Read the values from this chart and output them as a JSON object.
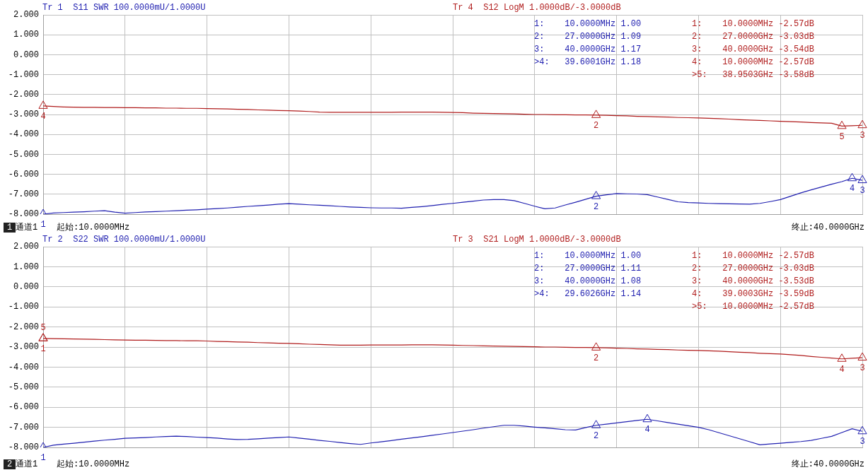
{
  "chart_data": [
    {
      "type": "line",
      "categories": [
        null,
        null,
        null,
        null,
        null,
        null,
        null,
        null,
        null,
        null,
        null,
        null,
        null,
        null,
        null,
        null,
        null,
        null,
        null,
        null,
        null,
        null,
        null,
        null,
        null,
        null,
        null,
        null,
        null,
        null,
        null,
        null,
        null,
        null,
        null,
        null,
        null,
        null,
        null,
        null,
        null,
        null,
        null,
        null,
        null,
        null,
        null,
        null,
        null,
        null,
        null,
        null,
        null,
        null,
        null,
        null,
        null,
        null,
        null,
        null,
        null,
        null,
        null,
        null,
        null,
        null,
        null,
        null,
        null,
        null,
        null,
        null,
        null,
        null,
        null,
        null,
        null,
        null,
        null,
        null,
        null
      ],
      "ylim": [
        -8,
        2
      ],
      "yticks": [
        {
          "value": 2,
          "label": "2.000"
        },
        {
          "value": 1,
          "label": "1.000"
        },
        {
          "value": 0,
          "label": "0.000"
        },
        {
          "value": -1,
          "label": "-1.000"
        },
        {
          "value": -2,
          "label": "-2.000"
        },
        {
          "value": -3,
          "label": "-3.000"
        },
        {
          "value": -4,
          "label": "-4.000"
        },
        {
          "value": -5,
          "label": "-5.000"
        },
        {
          "value": -6,
          "label": "-6.000"
        },
        {
          "value": -7,
          "label": "-7.000"
        },
        {
          "value": -8,
          "label": "-8.000"
        }
      ],
      "grid": true,
      "tick_labels": "y",
      "legend": false,
      "series": [
        {
          "name": "Tr 1  S11 SWR 100.0000mU/1.0000U",
          "color": "#2020b0",
          "values": [
            -8.0,
            -7.94,
            -7.92,
            -7.9,
            -7.88,
            -7.85,
            -7.83,
            -7.9,
            -7.95,
            -7.92,
            -7.89,
            -7.87,
            -7.85,
            -7.83,
            -7.8,
            -7.78,
            -7.75,
            -7.72,
            -7.69,
            -7.65,
            -7.61,
            -7.58,
            -7.54,
            -7.5,
            -7.47,
            -7.5,
            -7.53,
            -7.55,
            -7.58,
            -7.61,
            -7.64,
            -7.66,
            -7.68,
            -7.69,
            -7.69,
            -7.7,
            -7.66,
            -7.62,
            -7.57,
            -7.51,
            -7.46,
            -7.4,
            -7.35,
            -7.29,
            -7.27,
            -7.27,
            -7.32,
            -7.46,
            -7.6,
            -7.73,
            -7.69,
            -7.54,
            -7.4,
            -7.25,
            -7.1,
            -7.03,
            -6.97,
            -6.98,
            -6.99,
            -7.02,
            -7.14,
            -7.26,
            -7.38,
            -7.42,
            -7.44,
            -7.46,
            -7.47,
            -7.48,
            -7.49,
            -7.5,
            -7.46,
            -7.37,
            -7.27,
            -7.1,
            -6.93,
            -6.78,
            -6.64,
            -6.5,
            -6.37,
            -6.2,
            -6.3
          ]
        },
        {
          "name": "Tr 4  S12 LogM 1.0000dB/-3.0000dB",
          "color": "#b01c1c",
          "values": [
            -2.57,
            -2.6,
            -2.62,
            -2.63,
            -2.64,
            -2.64,
            -2.65,
            -2.65,
            -2.66,
            -2.66,
            -2.67,
            -2.67,
            -2.68,
            -2.68,
            -2.69,
            -2.69,
            -2.7,
            -2.71,
            -2.72,
            -2.74,
            -2.75,
            -2.77,
            -2.78,
            -2.8,
            -2.81,
            -2.83,
            -2.85,
            -2.88,
            -2.89,
            -2.89,
            -2.89,
            -2.89,
            -2.89,
            -2.89,
            -2.89,
            -2.88,
            -2.88,
            -2.88,
            -2.88,
            -2.89,
            -2.9,
            -2.91,
            -2.93,
            -2.94,
            -2.95,
            -2.96,
            -2.97,
            -2.99,
            -3.0,
            -3.0,
            -3.01,
            -3.01,
            -3.02,
            -3.02,
            -3.03,
            -3.04,
            -3.06,
            -3.07,
            -3.09,
            -3.1,
            -3.12,
            -3.13,
            -3.15,
            -3.16,
            -3.17,
            -3.19,
            -3.21,
            -3.23,
            -3.26,
            -3.28,
            -3.3,
            -3.32,
            -3.34,
            -3.36,
            -3.38,
            -3.4,
            -3.42,
            -3.44,
            -3.58,
            -3.56,
            -3.54
          ]
        },
        {
          "type": "scatter",
          "marker": "triangle",
          "color": "#2020b0",
          "values": [
            -8.0,
            null,
            null,
            null,
            null,
            null,
            null,
            null,
            null,
            null,
            null,
            null,
            null,
            null,
            null,
            null,
            null,
            null,
            null,
            null,
            null,
            null,
            null,
            null,
            null,
            null,
            null,
            null,
            null,
            null,
            null,
            null,
            null,
            null,
            null,
            null,
            null,
            null,
            null,
            null,
            null,
            null,
            null,
            null,
            null,
            null,
            null,
            null,
            null,
            null,
            null,
            null,
            null,
            null,
            -7.1,
            null,
            null,
            null,
            null,
            null,
            null,
            null,
            null,
            null,
            null,
            null,
            null,
            null,
            null,
            null,
            null,
            null,
            null,
            null,
            null,
            null,
            null,
            null,
            null,
            -6.2,
            -6.3
          ]
        },
        {
          "type": "scatter",
          "marker": "triangle",
          "color": "#b01c1c",
          "values": [
            -2.57,
            null,
            null,
            null,
            null,
            null,
            null,
            null,
            null,
            null,
            null,
            null,
            null,
            null,
            null,
            null,
            null,
            null,
            null,
            null,
            null,
            null,
            null,
            null,
            null,
            null,
            null,
            null,
            null,
            null,
            null,
            null,
            null,
            null,
            null,
            null,
            null,
            null,
            null,
            null,
            null,
            null,
            null,
            null,
            null,
            null,
            null,
            null,
            null,
            null,
            null,
            null,
            null,
            null,
            -3.03,
            null,
            null,
            null,
            null,
            null,
            null,
            null,
            null,
            null,
            null,
            null,
            null,
            null,
            null,
            null,
            null,
            null,
            null,
            null,
            null,
            null,
            null,
            null,
            -3.58,
            null,
            -3.54
          ]
        }
      ],
      "annotations": [
        "1:    10.0000MHz 1.00",
        "2:    27.0000GHz 1.09",
        "3:    40.0000GHz 1.17",
        ">4:   39.6001GHz 1.18",
        "1:    10.0000MHz -2.57dB",
        "2:    27.0000GHz -3.03dB",
        "3:    40.0000GHz -3.54dB",
        "4:    10.0000MHz -2.57dB",
        ">5:   38.9503GHz -3.58dB",
        "1",
        "通道1",
        "起始:10.0000MHz",
        "终止:40.0000GHz",
        "1",
        "2",
        "4",
        "3",
        "4",
        "2",
        "5",
        "3"
      ]
    },
    {
      "type": "line",
      "categories": [
        null,
        null,
        null,
        null,
        null,
        null,
        null,
        null,
        null,
        null,
        null,
        null,
        null,
        null,
        null,
        null,
        null,
        null,
        null,
        null,
        null,
        null,
        null,
        null,
        null,
        null,
        null,
        null,
        null,
        null,
        null,
        null,
        null,
        null,
        null,
        null,
        null,
        null,
        null,
        null,
        null,
        null,
        null,
        null,
        null,
        null,
        null,
        null,
        null,
        null,
        null,
        null,
        null,
        null,
        null,
        null,
        null,
        null,
        null,
        null,
        null,
        null,
        null,
        null,
        null,
        null,
        null,
        null,
        null,
        null,
        null,
        null,
        null,
        null,
        null,
        null,
        null,
        null,
        null,
        null,
        null
      ],
      "ylim": [
        -8,
        2
      ],
      "yticks": [
        {
          "value": 2,
          "label": "2.000"
        },
        {
          "value": 1,
          "label": "1.000"
        },
        {
          "value": 0,
          "label": "0.000"
        },
        {
          "value": -1,
          "label": "-1.000"
        },
        {
          "value": -2,
          "label": "-2.000"
        },
        {
          "value": -3,
          "label": "-3.000"
        },
        {
          "value": -4,
          "label": "-4.000"
        },
        {
          "value": -5,
          "label": "-5.000"
        },
        {
          "value": -6,
          "label": "-6.000"
        },
        {
          "value": -7,
          "label": "-7.000"
        },
        {
          "value": -8,
          "label": "-8.000"
        }
      ],
      "grid": true,
      "tick_labels": "y",
      "legend": false,
      "series": [
        {
          "name": "Tr 2  S22 SWR 100.0000mU/1.0000U",
          "color": "#2020b0",
          "values": [
            -8.0,
            -7.89,
            -7.84,
            -7.79,
            -7.74,
            -7.69,
            -7.64,
            -7.6,
            -7.55,
            -7.53,
            -7.51,
            -7.48,
            -7.46,
            -7.44,
            -7.46,
            -7.49,
            -7.51,
            -7.54,
            -7.58,
            -7.61,
            -7.6,
            -7.57,
            -7.54,
            -7.51,
            -7.48,
            -7.54,
            -7.59,
            -7.65,
            -7.7,
            -7.76,
            -7.81,
            -7.85,
            -7.78,
            -7.72,
            -7.66,
            -7.59,
            -7.53,
            -7.47,
            -7.4,
            -7.33,
            -7.26,
            -7.19,
            -7.12,
            -7.04,
            -6.97,
            -6.9,
            -6.9,
            -6.94,
            -6.99,
            -7.03,
            -7.07,
            -7.12,
            -7.13,
            -7.01,
            -6.9,
            -6.84,
            -6.78,
            -6.72,
            -6.66,
            -6.6,
            -6.68,
            -6.76,
            -6.84,
            -6.92,
            -7.0,
            -7.12,
            -7.27,
            -7.42,
            -7.57,
            -7.72,
            -7.87,
            -7.83,
            -7.79,
            -7.75,
            -7.71,
            -7.65,
            -7.55,
            -7.45,
            -7.26,
            -7.07,
            -7.2
          ]
        },
        {
          "name": "Tr 3  S21 LogM 1.0000dB/-3.0000dB",
          "color": "#b01c1c",
          "values": [
            -2.57,
            -2.58,
            -2.59,
            -2.6,
            -2.61,
            -2.62,
            -2.63,
            -2.64,
            -2.65,
            -2.66,
            -2.66,
            -2.67,
            -2.68,
            -2.68,
            -2.69,
            -2.69,
            -2.7,
            -2.72,
            -2.73,
            -2.75,
            -2.76,
            -2.78,
            -2.79,
            -2.81,
            -2.82,
            -2.84,
            -2.86,
            -2.87,
            -2.89,
            -2.91,
            -2.91,
            -2.91,
            -2.9,
            -2.9,
            -2.9,
            -2.9,
            -2.89,
            -2.89,
            -2.89,
            -2.9,
            -2.91,
            -2.92,
            -2.93,
            -2.94,
            -2.95,
            -2.96,
            -2.97,
            -2.98,
            -2.99,
            -3.0,
            -3.0,
            -3.01,
            -3.02,
            -3.02,
            -3.03,
            -3.04,
            -3.06,
            -3.07,
            -3.09,
            -3.1,
            -3.12,
            -3.13,
            -3.15,
            -3.16,
            -3.17,
            -3.19,
            -3.21,
            -3.23,
            -3.26,
            -3.28,
            -3.31,
            -3.33,
            -3.35,
            -3.38,
            -3.42,
            -3.47,
            -3.51,
            -3.55,
            -3.59,
            -3.56,
            -3.53
          ]
        },
        {
          "type": "scatter",
          "marker": "triangle",
          "color": "#2020b0",
          "values": [
            -8.0,
            null,
            null,
            null,
            null,
            null,
            null,
            null,
            null,
            null,
            null,
            null,
            null,
            null,
            null,
            null,
            null,
            null,
            null,
            null,
            null,
            null,
            null,
            null,
            null,
            null,
            null,
            null,
            null,
            null,
            null,
            null,
            null,
            null,
            null,
            null,
            null,
            null,
            null,
            null,
            null,
            null,
            null,
            null,
            null,
            null,
            null,
            null,
            null,
            null,
            null,
            null,
            null,
            null,
            -6.9,
            null,
            null,
            null,
            null,
            -6.6,
            null,
            null,
            null,
            null,
            null,
            null,
            null,
            null,
            null,
            null,
            null,
            null,
            null,
            null,
            null,
            null,
            null,
            null,
            null,
            null,
            -7.2
          ]
        },
        {
          "type": "scatter",
          "marker": "triangle",
          "color": "#b01c1c",
          "values": [
            -2.57,
            null,
            null,
            null,
            null,
            null,
            null,
            null,
            null,
            null,
            null,
            null,
            null,
            null,
            null,
            null,
            null,
            null,
            null,
            null,
            null,
            null,
            null,
            null,
            null,
            null,
            null,
            null,
            null,
            null,
            null,
            null,
            null,
            null,
            null,
            null,
            null,
            null,
            null,
            null,
            null,
            null,
            null,
            null,
            null,
            null,
            null,
            null,
            null,
            null,
            null,
            null,
            null,
            null,
            -3.03,
            null,
            null,
            null,
            null,
            null,
            null,
            null,
            null,
            null,
            null,
            null,
            null,
            null,
            null,
            null,
            null,
            null,
            null,
            null,
            null,
            null,
            null,
            null,
            -3.59,
            null,
            -3.53
          ]
        },
        {
          "type": "scatter",
          "marker": "triangle",
          "color": "#b01c1c",
          "values": [
            -2.57,
            null,
            null,
            null,
            null,
            null,
            null,
            null,
            null,
            null,
            null,
            null,
            null,
            null,
            null,
            null,
            null,
            null,
            null,
            null,
            null,
            null,
            null,
            null,
            null,
            null,
            null,
            null,
            null,
            null,
            null,
            null,
            null,
            null,
            null,
            null,
            null,
            null,
            null,
            null,
            null,
            null,
            null,
            null,
            null,
            null,
            null,
            null,
            null,
            null,
            null,
            null,
            null,
            null,
            null,
            null,
            null,
            null,
            null,
            null,
            null,
            null,
            null,
            null,
            null,
            null,
            null,
            null,
            null,
            null,
            null,
            null,
            null,
            null,
            null,
            null,
            null,
            null,
            null,
            null,
            null
          ]
        }
      ],
      "annotations": [
        "1:    10.0000MHz 1.00",
        "2:    27.0000GHz 1.11",
        "3:    40.0000GHz 1.08",
        ">4:   29.6026GHz 1.14",
        "1:    10.0000MHz -2.57dB",
        "2:    27.0000GHz -3.03dB",
        "3:    40.0000GHz -3.53dB",
        "4:    39.0003GHz -3.59dB",
        ">5:   10.0000MHz -2.57dB",
        "2",
        "通道1",
        "起始:10.0000MHz",
        "终止:40.0000GHz",
        "1",
        "2",
        "4",
        "3",
        "1",
        "2",
        "4",
        "3",
        "5"
      ]
    }
  ]
}
